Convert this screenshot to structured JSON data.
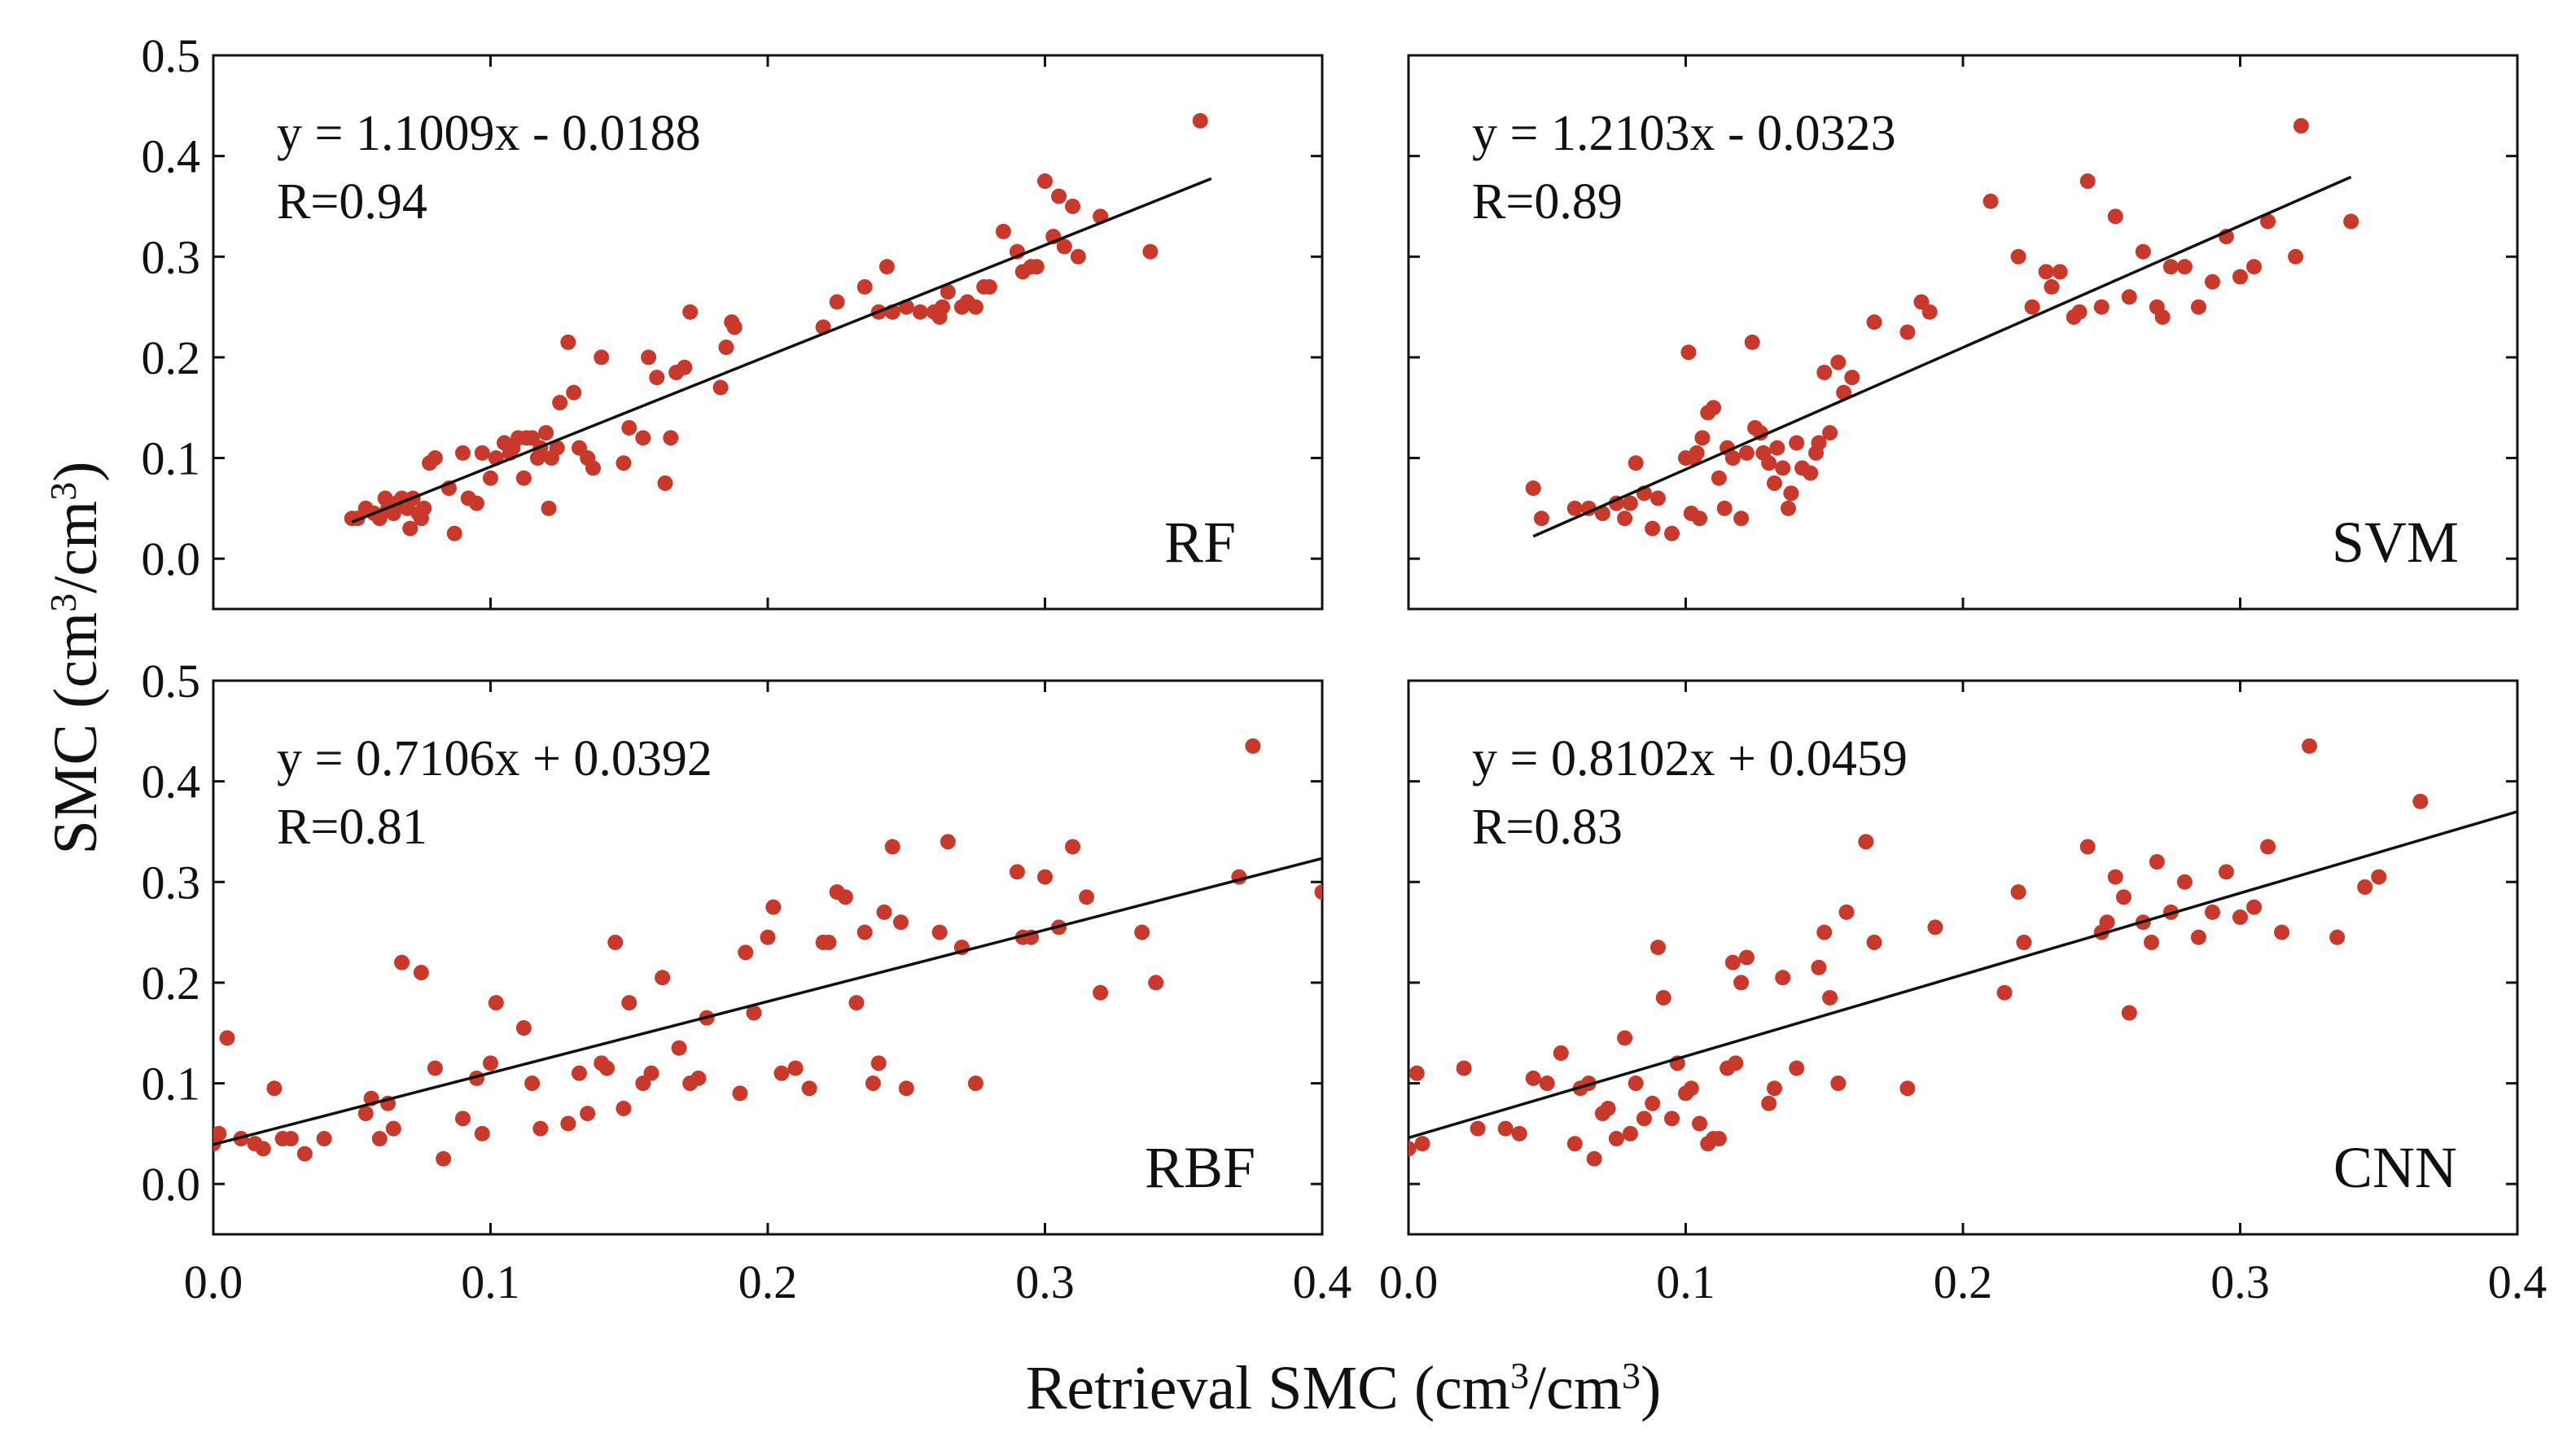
{
  "figure": {
    "ylabel_main": "SMC (cm",
    "ylabel_sup1": "3",
    "ylabel_mid": "/cm",
    "ylabel_sup2": "3",
    "ylabel_end": ")",
    "xlabel_main": "Retrieval SMC (cm",
    "xlabel_sup1": "3",
    "xlabel_mid": "/cm",
    "xlabel_sup2": "3",
    "xlabel_end": ")"
  },
  "colors": {
    "points": "#c8392b",
    "line": "#111111"
  },
  "chart_data": [
    {
      "type": "scatter",
      "model": "RF",
      "equation": "y = 1.1009x - 0.0188",
      "r_text": "R=0.94",
      "slope": 1.1009,
      "intercept": -0.0188,
      "fit_x": [
        0.05,
        0.36
      ],
      "xlim": [
        0.0,
        0.4
      ],
      "ylim": [
        -0.05,
        0.5
      ],
      "xticks": [],
      "yticks": [
        "0.0",
        "0.1",
        "0.2",
        "0.3",
        "0.4",
        "0.5"
      ],
      "x": [
        0.05,
        0.052,
        0.055,
        0.058,
        0.06,
        0.062,
        0.063,
        0.065,
        0.066,
        0.068,
        0.07,
        0.071,
        0.072,
        0.074,
        0.075,
        0.076,
        0.078,
        0.08,
        0.085,
        0.087,
        0.09,
        0.092,
        0.095,
        0.097,
        0.1,
        0.102,
        0.105,
        0.107,
        0.108,
        0.11,
        0.112,
        0.113,
        0.115,
        0.117,
        0.118,
        0.12,
        0.121,
        0.122,
        0.124,
        0.125,
        0.128,
        0.13,
        0.132,
        0.135,
        0.137,
        0.14,
        0.148,
        0.15,
        0.155,
        0.157,
        0.16,
        0.163,
        0.165,
        0.167,
        0.17,
        0.172,
        0.183,
        0.185,
        0.187,
        0.188,
        0.22,
        0.225,
        0.235,
        0.24,
        0.243,
        0.245,
        0.25,
        0.255,
        0.26,
        0.262,
        0.263,
        0.265,
        0.27,
        0.272,
        0.275,
        0.278,
        0.28,
        0.285,
        0.29,
        0.292,
        0.295,
        0.297,
        0.3,
        0.303,
        0.305,
        0.307,
        0.31,
        0.312,
        0.32,
        0.338,
        0.356
      ],
      "y": [
        0.04,
        0.04,
        0.05,
        0.045,
        0.04,
        0.06,
        0.05,
        0.045,
        0.055,
        0.06,
        0.05,
        0.03,
        0.06,
        0.045,
        0.04,
        0.05,
        0.095,
        0.1,
        0.07,
        0.025,
        0.105,
        0.06,
        0.055,
        0.105,
        0.08,
        0.1,
        0.115,
        0.105,
        0.11,
        0.12,
        0.08,
        0.12,
        0.12,
        0.1,
        0.11,
        0.125,
        0.05,
        0.1,
        0.11,
        0.155,
        0.215,
        0.165,
        0.11,
        0.1,
        0.09,
        0.2,
        0.095,
        0.13,
        0.12,
        0.2,
        0.18,
        0.075,
        0.12,
        0.185,
        0.19,
        0.245,
        0.17,
        0.21,
        0.235,
        0.23,
        0.23,
        0.255,
        0.27,
        0.245,
        0.29,
        0.245,
        0.25,
        0.245,
        0.245,
        0.24,
        0.25,
        0.265,
        0.25,
        0.255,
        0.25,
        0.27,
        0.27,
        0.325,
        0.305,
        0.285,
        0.29,
        0.29,
        0.375,
        0.32,
        0.36,
        0.31,
        0.35,
        0.3,
        0.34,
        0.305,
        0.435
      ]
    },
    {
      "type": "scatter",
      "model": "SVM",
      "equation": "y = 1.2103x - 0.0323",
      "r_text": "R=0.89",
      "slope": 1.2103,
      "intercept": -0.0323,
      "fit_x": [
        0.045,
        0.34
      ],
      "xlim": [
        0.0,
        0.4
      ],
      "ylim": [
        -0.05,
        0.5
      ],
      "xticks": [],
      "yticks": [],
      "x": [
        0.045,
        0.048,
        0.06,
        0.065,
        0.07,
        0.075,
        0.078,
        0.08,
        0.082,
        0.085,
        0.088,
        0.09,
        0.095,
        0.1,
        0.101,
        0.102,
        0.103,
        0.104,
        0.105,
        0.106,
        0.108,
        0.11,
        0.112,
        0.114,
        0.115,
        0.117,
        0.12,
        0.122,
        0.124,
        0.125,
        0.127,
        0.128,
        0.13,
        0.132,
        0.133,
        0.135,
        0.137,
        0.138,
        0.14,
        0.142,
        0.145,
        0.147,
        0.148,
        0.15,
        0.152,
        0.155,
        0.157,
        0.16,
        0.168,
        0.18,
        0.185,
        0.188,
        0.21,
        0.22,
        0.225,
        0.23,
        0.232,
        0.235,
        0.24,
        0.242,
        0.245,
        0.25,
        0.255,
        0.26,
        0.265,
        0.27,
        0.272,
        0.275,
        0.28,
        0.285,
        0.29,
        0.295,
        0.3,
        0.305,
        0.31,
        0.32,
        0.322,
        0.34
      ],
      "y": [
        0.07,
        0.04,
        0.05,
        0.05,
        0.045,
        0.055,
        0.04,
        0.055,
        0.095,
        0.065,
        0.03,
        0.06,
        0.025,
        0.1,
        0.205,
        0.045,
        0.1,
        0.105,
        0.04,
        0.12,
        0.145,
        0.15,
        0.08,
        0.05,
        0.11,
        0.1,
        0.04,
        0.105,
        0.215,
        0.13,
        0.125,
        0.105,
        0.095,
        0.075,
        0.11,
        0.09,
        0.05,
        0.065,
        0.115,
        0.09,
        0.085,
        0.105,
        0.115,
        0.185,
        0.125,
        0.195,
        0.165,
        0.18,
        0.235,
        0.225,
        0.255,
        0.245,
        0.355,
        0.3,
        0.25,
        0.285,
        0.27,
        0.285,
        0.24,
        0.245,
        0.375,
        0.25,
        0.34,
        0.26,
        0.305,
        0.25,
        0.24,
        0.29,
        0.29,
        0.25,
        0.275,
        0.32,
        0.28,
        0.29,
        0.335,
        0.3,
        0.43,
        0.335
      ]
    },
    {
      "type": "scatter",
      "model": "RBF",
      "equation": "y = 0.7106x + 0.0392",
      "r_text": "R=0.81",
      "slope": 0.7106,
      "intercept": 0.0392,
      "fit_x": [
        0.0,
        0.4
      ],
      "xlim": [
        0.0,
        0.4
      ],
      "ylim": [
        -0.05,
        0.5
      ],
      "xticks": [
        "0.0",
        "0.1",
        "0.2",
        "0.3",
        "0.4"
      ],
      "yticks": [
        "0.0",
        "0.1",
        "0.2",
        "0.3",
        "0.4",
        "0.5"
      ],
      "x": [
        0.0,
        0.002,
        0.005,
        0.01,
        0.015,
        0.018,
        0.022,
        0.025,
        0.028,
        0.033,
        0.04,
        0.055,
        0.057,
        0.06,
        0.063,
        0.065,
        0.068,
        0.075,
        0.08,
        0.083,
        0.09,
        0.095,
        0.097,
        0.1,
        0.102,
        0.112,
        0.115,
        0.118,
        0.128,
        0.132,
        0.135,
        0.14,
        0.142,
        0.145,
        0.148,
        0.15,
        0.155,
        0.158,
        0.162,
        0.168,
        0.172,
        0.175,
        0.178,
        0.19,
        0.192,
        0.195,
        0.2,
        0.202,
        0.205,
        0.21,
        0.215,
        0.22,
        0.222,
        0.225,
        0.228,
        0.232,
        0.235,
        0.238,
        0.24,
        0.242,
        0.245,
        0.248,
        0.25,
        0.262,
        0.265,
        0.27,
        0.275,
        0.29,
        0.292,
        0.295,
        0.3,
        0.305,
        0.31,
        0.315,
        0.32,
        0.335,
        0.34,
        0.37,
        0.375,
        0.4
      ],
      "y": [
        0.04,
        0.05,
        0.145,
        0.045,
        0.04,
        0.035,
        0.095,
        0.045,
        0.045,
        0.03,
        0.045,
        0.07,
        0.085,
        0.045,
        0.08,
        0.055,
        0.22,
        0.21,
        0.115,
        0.025,
        0.065,
        0.105,
        0.05,
        0.12,
        0.18,
        0.155,
        0.1,
        0.055,
        0.06,
        0.11,
        0.07,
        0.12,
        0.115,
        0.24,
        0.075,
        0.18,
        0.1,
        0.11,
        0.205,
        0.135,
        0.1,
        0.105,
        0.165,
        0.09,
        0.23,
        0.17,
        0.245,
        0.275,
        0.11,
        0.115,
        0.095,
        0.24,
        0.24,
        0.29,
        0.285,
        0.18,
        0.25,
        0.1,
        0.12,
        0.27,
        0.335,
        0.26,
        0.095,
        0.25,
        0.34,
        0.235,
        0.1,
        0.31,
        0.245,
        0.245,
        0.305,
        0.255,
        0.335,
        0.285,
        0.19,
        0.25,
        0.2,
        0.305,
        0.435,
        0.29
      ],
      "extra_note": ""
    },
    {
      "type": "scatter",
      "model": "CNN",
      "equation": "y = 0.8102x + 0.0459",
      "r_text": "R=0.83",
      "slope": 0.8102,
      "intercept": 0.0459,
      "fit_x": [
        0.0,
        0.4
      ],
      "xlim": [
        0.0,
        0.4
      ],
      "ylim": [
        -0.05,
        0.5
      ],
      "xticks": [
        "0.0",
        "0.1",
        "0.2",
        "0.3",
        "0.4"
      ],
      "yticks": [],
      "x": [
        0.0,
        0.003,
        0.005,
        0.02,
        0.025,
        0.035,
        0.04,
        0.045,
        0.05,
        0.055,
        0.06,
        0.062,
        0.065,
        0.067,
        0.07,
        0.072,
        0.075,
        0.078,
        0.08,
        0.082,
        0.085,
        0.088,
        0.09,
        0.092,
        0.095,
        0.097,
        0.1,
        0.102,
        0.105,
        0.108,
        0.11,
        0.112,
        0.115,
        0.117,
        0.118,
        0.12,
        0.122,
        0.13,
        0.132,
        0.135,
        0.14,
        0.148,
        0.15,
        0.152,
        0.155,
        0.158,
        0.165,
        0.168,
        0.18,
        0.19,
        0.215,
        0.22,
        0.222,
        0.245,
        0.25,
        0.252,
        0.255,
        0.258,
        0.26,
        0.265,
        0.268,
        0.27,
        0.275,
        0.28,
        0.285,
        0.29,
        0.295,
        0.3,
        0.305,
        0.31,
        0.315,
        0.325,
        0.335,
        0.345,
        0.35,
        0.365
      ],
      "y": [
        0.035,
        0.11,
        0.04,
        0.115,
        0.055,
        0.055,
        0.05,
        0.105,
        0.1,
        0.13,
        0.04,
        0.095,
        0.1,
        0.025,
        0.07,
        0.075,
        0.045,
        0.145,
        0.05,
        0.1,
        0.065,
        0.08,
        0.235,
        0.185,
        0.065,
        0.12,
        0.09,
        0.095,
        0.06,
        0.04,
        0.045,
        0.045,
        0.115,
        0.22,
        0.12,
        0.2,
        0.225,
        0.08,
        0.095,
        0.205,
        0.115,
        0.215,
        0.25,
        0.185,
        0.1,
        0.27,
        0.34,
        0.24,
        0.095,
        0.255,
        0.19,
        0.29,
        0.24,
        0.335,
        0.25,
        0.26,
        0.305,
        0.285,
        0.17,
        0.26,
        0.24,
        0.32,
        0.27,
        0.3,
        0.245,
        0.27,
        0.31,
        0.265,
        0.275,
        0.335,
        0.25,
        0.435,
        0.245,
        0.295,
        0.305,
        0.38
      ]
    }
  ]
}
